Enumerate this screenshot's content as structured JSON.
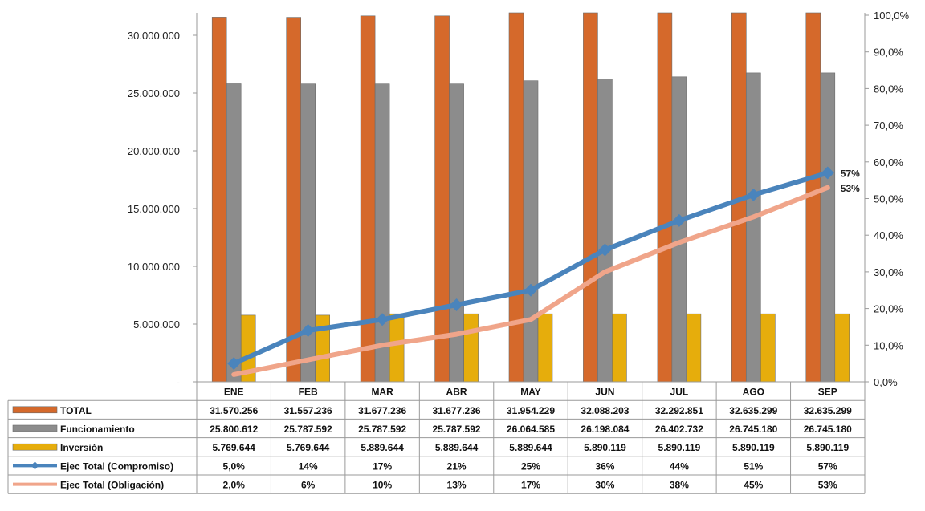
{
  "chart_data": {
    "type": "bar",
    "categories": [
      "ENE",
      "FEB",
      "MAR",
      "ABR",
      "MAY",
      "JUN",
      "JUL",
      "AGO",
      "SEP"
    ],
    "series": [
      {
        "name": "TOTAL",
        "kind": "bar",
        "axis": "left",
        "color": "#D5692B",
        "values": [
          31570256,
          31557236,
          31677236,
          31677236,
          31954229,
          32088203,
          32292851,
          32635299,
          32635299
        ],
        "labels": [
          "31.570.256",
          "31.557.236",
          "31.677.236",
          "31.677.236",
          "31.954.229",
          "32.088.203",
          "32.292.851",
          "32.635.299",
          "32.635.299"
        ]
      },
      {
        "name": "Funcionamiento",
        "kind": "bar",
        "axis": "left",
        "color": "#8C8C8C",
        "values": [
          25800612,
          25787592,
          25787592,
          25787592,
          26064585,
          26198084,
          26402732,
          26745180,
          26745180
        ],
        "labels": [
          "25.800.612",
          "25.787.592",
          "25.787.592",
          "25.787.592",
          "26.064.585",
          "26.198.084",
          "26.402.732",
          "26.745.180",
          "26.745.180"
        ]
      },
      {
        "name": "Inversión",
        "kind": "bar",
        "axis": "left",
        "color": "#E6AD0C",
        "values": [
          5769644,
          5769644,
          5889644,
          5889644,
          5889644,
          5890119,
          5890119,
          5890119,
          5890119
        ],
        "labels": [
          "5.769.644",
          "5.769.644",
          "5.889.644",
          "5.889.644",
          "5.889.644",
          "5.890.119",
          "5.890.119",
          "5.890.119",
          "5.890.119"
        ]
      },
      {
        "name": "Ejec Total (Compromiso)",
        "kind": "line",
        "axis": "right",
        "color": "#4A84BC",
        "marker": "diamond",
        "values": [
          5.0,
          14,
          17,
          21,
          25,
          36,
          44,
          51,
          57
        ],
        "labels": [
          "5,0%",
          "14%",
          "17%",
          "21%",
          "25%",
          "36%",
          "44%",
          "51%",
          "57%"
        ],
        "end_label": "57%"
      },
      {
        "name": "Ejec Total (Obligación)",
        "kind": "line",
        "axis": "right",
        "color": "#F0A58A",
        "values": [
          2.0,
          6,
          10,
          13,
          17,
          30,
          38,
          45,
          53
        ],
        "labels": [
          "2,0%",
          "6%",
          "10%",
          "13%",
          "17%",
          "30%",
          "38%",
          "45%",
          "53%"
        ],
        "end_label": "53%"
      }
    ],
    "y_left": {
      "range": [
        0,
        32000000
      ],
      "ticks": [
        0,
        5000000,
        10000000,
        15000000,
        20000000,
        25000000,
        30000000
      ],
      "tick_labels": [
        "-",
        "5.000.000",
        "10.000.000",
        "15.000.000",
        "20.000.000",
        "25.000.000",
        "30.000.000"
      ]
    },
    "y_right": {
      "range": [
        0,
        100
      ],
      "ticks": [
        0,
        10,
        20,
        30,
        40,
        50,
        60,
        70,
        80,
        90,
        100
      ],
      "tick_labels": [
        "0,0%",
        "10,0%",
        "20,0%",
        "30,0%",
        "40,0%",
        "50,0%",
        "60,0%",
        "70,0%",
        "80,0%",
        "90,0%",
        "100,0%"
      ]
    },
    "grid": false,
    "legend": "data-table-below",
    "title": "",
    "xlabel": "",
    "ylabel": ""
  }
}
